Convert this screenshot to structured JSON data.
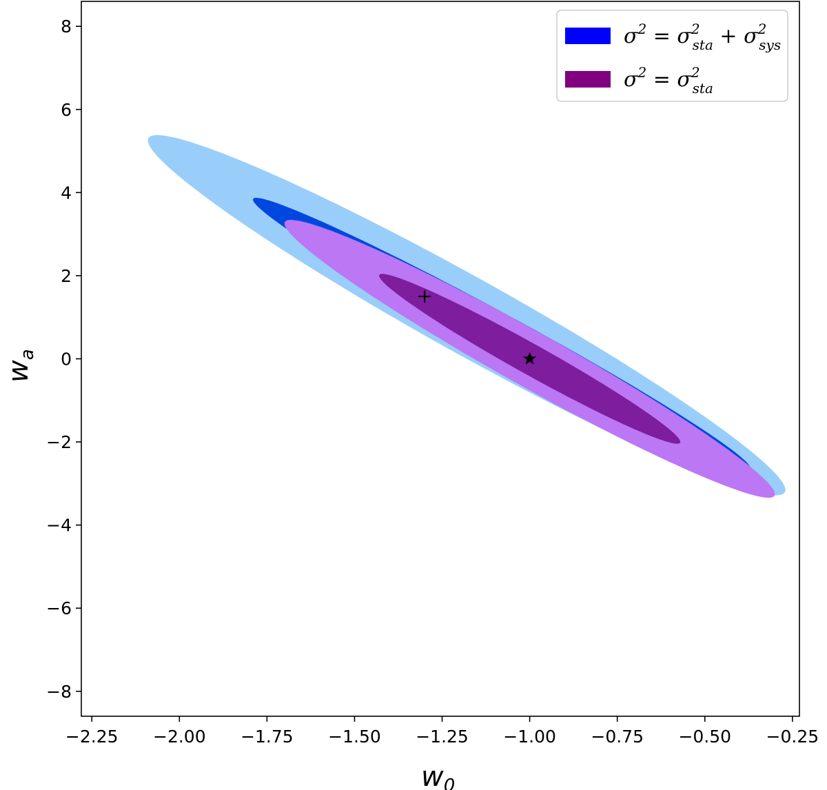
{
  "chart_data": {
    "type": "contour",
    "xlabel": "w",
    "xlabel_sub": "0",
    "ylabel": "w",
    "ylabel_sub": "a",
    "xlim": [
      -2.28,
      -0.23
    ],
    "ylim": [
      -8.6,
      8.6
    ],
    "x_ticks": [
      -2.25,
      -2.0,
      -1.75,
      -1.5,
      -1.25,
      -1.0,
      -0.75,
      -0.5,
      -0.25
    ],
    "x_tick_labels": [
      "−2.25",
      "−2.00",
      "−1.75",
      "−1.50",
      "−1.25",
      "−1.00",
      "−0.75",
      "−0.50",
      "−0.25"
    ],
    "y_ticks": [
      8,
      6,
      4,
      2,
      0,
      -2,
      -4,
      -6,
      -8
    ],
    "y_tick_labels": [
      "8",
      "6",
      "4",
      "2",
      "0",
      "−2",
      "−4",
      "−6",
      "−8"
    ],
    "legend_position": "top-right",
    "legend": [
      {
        "color": "#0000ff",
        "label": [
          "σ",
          "2",
          " = σ",
          "2",
          "sta",
          " + σ",
          "2",
          "sys"
        ]
      },
      {
        "color": "#800080",
        "label": [
          "σ",
          "2",
          " = σ",
          "2",
          "sta"
        ]
      }
    ],
    "series": [
      {
        "level": "outer",
        "group": "sta+sys",
        "color": "#99cefa",
        "center": [
          -1.18,
          1.05
        ],
        "extent_x": [
          -2.09,
          -0.27
        ],
        "slope": -4.62,
        "half_width_wa": 1.05
      },
      {
        "level": "inner",
        "group": "sta+sys",
        "color": "#0047e0",
        "center": [
          -1.08,
          0.6
        ],
        "extent_x": [
          -1.79,
          -0.37
        ],
        "slope": -4.55,
        "half_width_wa": 0.53
      },
      {
        "level": "outer",
        "group": "sta",
        "color": "#bb77f4",
        "center": [
          -1.0,
          0.0
        ],
        "extent_x": [
          -1.7,
          -0.3
        ],
        "slope": -4.65,
        "half_width_wa": 0.76
      },
      {
        "level": "inner",
        "group": "sta",
        "color": "#7e1d9d",
        "center": [
          -1.0,
          0.0
        ],
        "extent_x": [
          -1.43,
          -0.57
        ],
        "slope": -4.65,
        "half_width_wa": 0.42
      }
    ],
    "markers": [
      {
        "symbol": "+",
        "x": -1.3,
        "y": 1.5
      },
      {
        "symbol": "star",
        "x": -1.0,
        "y": 0.0
      }
    ]
  }
}
